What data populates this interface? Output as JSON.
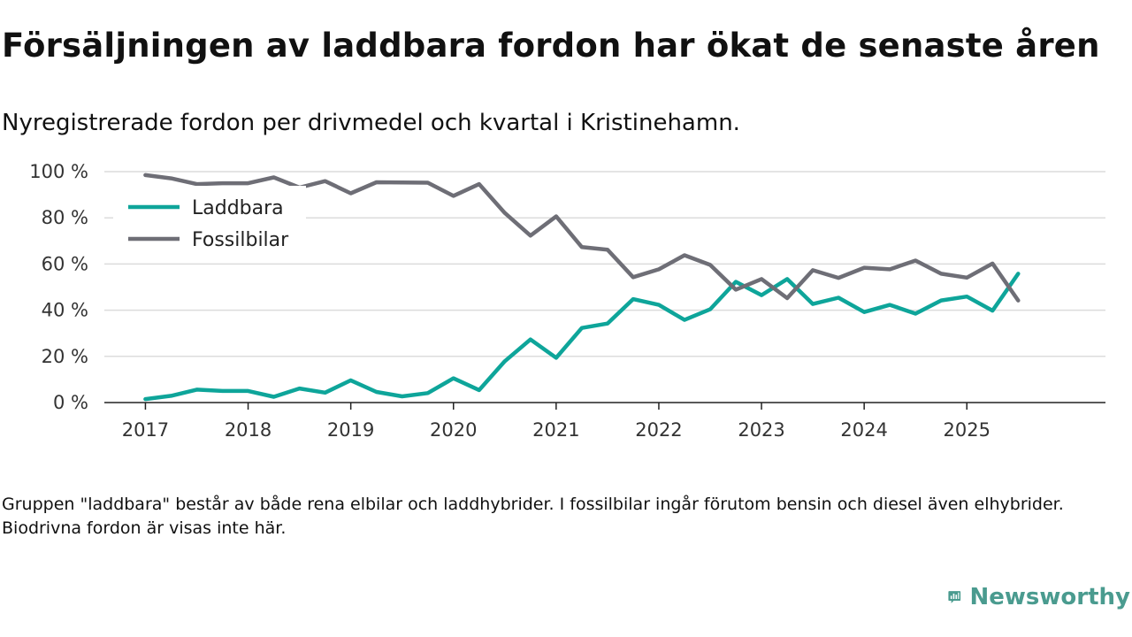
{
  "title": "Försäljningen av laddbara fordon har ökat de senaste åren",
  "subtitle": "Nyregistrerade fordon per drivmedel och kvartal i Kristinehamn.",
  "note": "Gruppen \"laddbara\" består av både rena elbilar och laddhybrider. I fossilbilar ingår förutom bensin och diesel även elhybrider. Biodrivna fordon är visas inte här.",
  "brand": {
    "name": "Newsworthy",
    "color": "#4a9b8f"
  },
  "chart_data": {
    "type": "line",
    "title": "Försäljningen av laddbara fordon har ökat de senaste åren",
    "subtitle": "Nyregistrerade fordon per drivmedel och kvartal i Kristinehamn.",
    "xlabel": "",
    "ylabel": "",
    "x_start": 2017.0,
    "x_step": 0.25,
    "xlim": [
      2016.6,
      2026.35
    ],
    "ylim": [
      0,
      100
    ],
    "y_ticks": [
      0,
      20,
      40,
      60,
      80,
      100
    ],
    "y_tick_labels": [
      "0 %",
      "20 %",
      "40 %",
      "60 %",
      "80 %",
      "100 %"
    ],
    "x_ticks": [
      2017,
      2018,
      2019,
      2020,
      2021,
      2022,
      2023,
      2024,
      2025
    ],
    "x_tick_labels": [
      "2017",
      "2018",
      "2019",
      "2020",
      "2021",
      "2022",
      "2023",
      "2024",
      "2025"
    ],
    "grid": true,
    "legend_position": "top-left",
    "series": [
      {
        "name": "Laddbara",
        "color": "#0ea59a",
        "values": [
          1.5,
          2.9,
          5.6,
          5.0,
          5.0,
          2.5,
          6.1,
          4.3,
          9.6,
          4.6,
          2.7,
          4.1,
          10.5,
          5.4,
          17.9,
          27.3,
          19.4,
          32.3,
          34.2,
          44.8,
          42.3,
          35.8,
          40.4,
          52.3,
          46.5,
          53.5,
          42.7,
          45.4,
          39.2,
          42.3,
          38.5,
          44.2,
          45.9,
          39.8,
          55.8
        ]
      },
      {
        "name": "Fossilbilar",
        "color": "#6e6e76",
        "values": [
          98.5,
          97.1,
          94.6,
          95.0,
          95.0,
          97.5,
          93.1,
          95.9,
          90.6,
          95.4,
          95.3,
          95.2,
          89.5,
          94.6,
          82.1,
          72.3,
          80.6,
          67.3,
          66.2,
          54.3,
          57.7,
          63.8,
          59.6,
          48.9,
          53.5,
          45.2,
          57.3,
          54.0,
          58.4,
          57.7,
          61.5,
          55.8,
          54.1,
          60.2,
          44.2
        ]
      }
    ]
  }
}
